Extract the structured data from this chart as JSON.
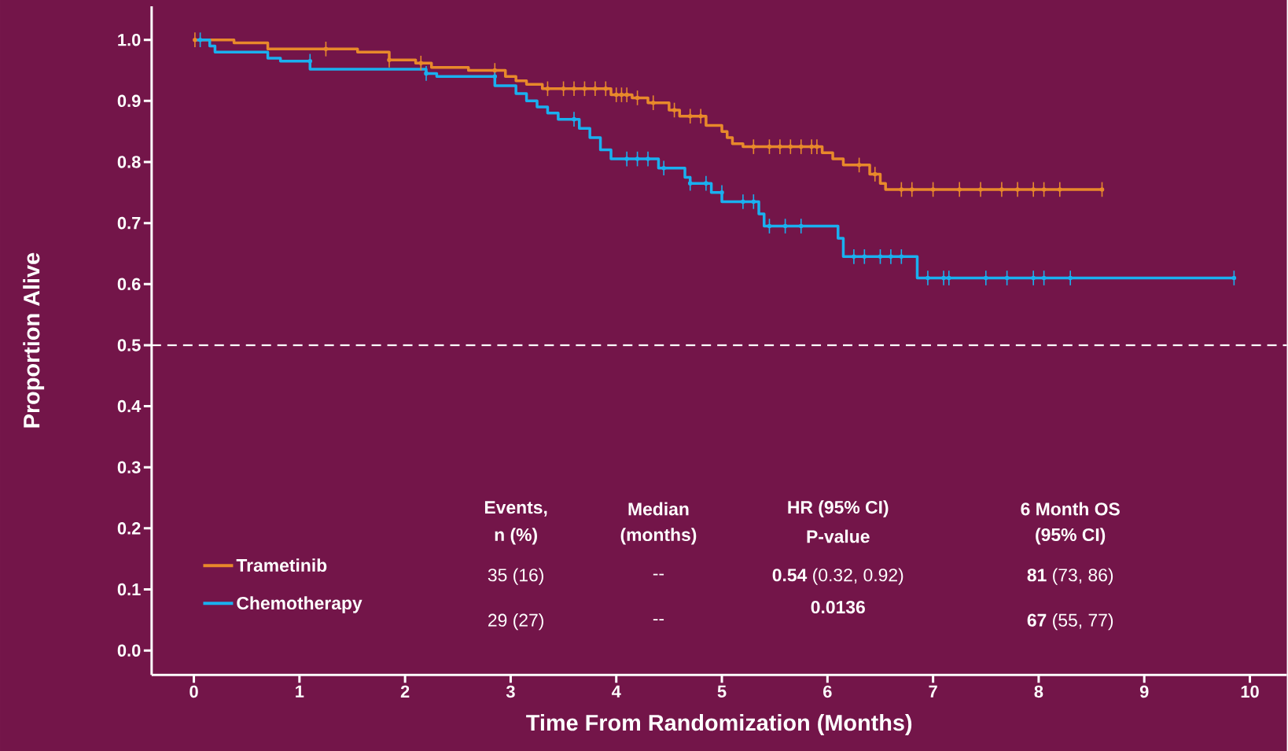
{
  "chart_data": {
    "type": "step",
    "xlabel": "Time From Randomization (Months)",
    "ylabel": "Proportion Alive",
    "xlim": [
      -0.4,
      10.35
    ],
    "ylim": [
      -0.04,
      1.055
    ],
    "xticks": [
      0,
      1,
      2,
      3,
      4,
      5,
      6,
      7,
      8,
      9,
      10
    ],
    "yticks": [
      {
        "value": 0,
        "label": "0.0"
      },
      {
        "value": 0.1,
        "label": "0.1"
      },
      {
        "value": 0.2,
        "label": "0.2"
      },
      {
        "value": 0.3,
        "label": "0.3"
      },
      {
        "value": 0.4,
        "label": "0.4"
      },
      {
        "value": 0.5,
        "label": "0.5"
      },
      {
        "value": 0.6,
        "label": "0.6"
      },
      {
        "value": 0.7,
        "label": "0.7"
      },
      {
        "value": 0.8,
        "label": "0.8"
      },
      {
        "value": 0.9,
        "label": "0.9"
      },
      {
        "value": 1,
        "label": "1.0"
      }
    ],
    "grid": false,
    "legend": "bottom left",
    "marker": "none",
    "line_style": "solid",
    "series": [
      {
        "name": "Trametinib",
        "color": "#e8892b",
        "x": [
          0,
          0.38,
          0.7,
          1.55,
          1.85,
          2.1,
          2.25,
          2.6,
          2.95,
          3.05,
          3.15,
          3.3,
          3.95,
          4.15,
          4.3,
          4.5,
          4.6,
          4.85,
          5.0,
          5.05,
          5.1,
          5.2,
          5.95,
          6.05,
          6.15,
          6.4,
          6.5,
          6.55,
          8.6
        ],
        "values": [
          1.0,
          0.995,
          0.985,
          0.98,
          0.967,
          0.962,
          0.955,
          0.95,
          0.94,
          0.933,
          0.927,
          0.92,
          0.91,
          0.905,
          0.897,
          0.885,
          0.875,
          0.86,
          0.85,
          0.84,
          0.83,
          0.825,
          0.815,
          0.805,
          0.795,
          0.78,
          0.765,
          0.755,
          0.755
        ]
      },
      {
        "name": "Chemotherapy",
        "color": "#1ab0ef",
        "x": [
          0,
          0.15,
          0.2,
          0.7,
          0.82,
          1.1,
          2.2,
          2.3,
          2.85,
          3.05,
          3.15,
          3.25,
          3.35,
          3.45,
          3.65,
          3.75,
          3.85,
          3.95,
          4.4,
          4.65,
          4.7,
          4.9,
          5.0,
          5.35,
          5.4,
          6.1,
          6.15,
          6.85,
          9.85
        ],
        "values": [
          1.0,
          0.99,
          0.98,
          0.97,
          0.965,
          0.952,
          0.945,
          0.94,
          0.925,
          0.912,
          0.9,
          0.89,
          0.88,
          0.87,
          0.855,
          0.84,
          0.82,
          0.805,
          0.79,
          0.775,
          0.765,
          0.75,
          0.735,
          0.715,
          0.695,
          0.675,
          0.645,
          0.61,
          0.61
        ]
      },
      {
        "color": "#e8892b",
        "type": "scatter",
        "errors": [
          0.012,
          0.012,
          0.012,
          0.012,
          0.012,
          0.012,
          0.012,
          0.012,
          0.012,
          0.012,
          0.012,
          0.012,
          0.012,
          0.012,
          0.012,
          0.012,
          0.012,
          0.012,
          0.012,
          0.012,
          0.012,
          0.012,
          0.012,
          0.012,
          0.012,
          0.012,
          0.012,
          0.012,
          0.012,
          0.012,
          0.012,
          0.012,
          0.012,
          0.012,
          0.012,
          0.012,
          0.012,
          0.012,
          0.012
        ],
        "x": [
          0.01,
          1.25,
          1.85,
          2.15,
          2.85,
          3.35,
          3.5,
          3.6,
          3.7,
          3.8,
          3.9,
          4.0,
          4.05,
          4.1,
          4.2,
          4.35,
          4.55,
          4.7,
          4.8,
          5.3,
          5.45,
          5.55,
          5.65,
          5.75,
          5.85,
          5.9,
          6.3,
          6.45,
          6.7,
          6.8,
          7.0,
          7.25,
          7.45,
          7.65,
          7.8,
          7.95,
          8.05,
          8.2,
          8.6
        ],
        "values": [
          1.0,
          0.985,
          0.967,
          0.962,
          0.95,
          0.92,
          0.92,
          0.92,
          0.92,
          0.92,
          0.92,
          0.91,
          0.91,
          0.91,
          0.905,
          0.897,
          0.885,
          0.875,
          0.875,
          0.825,
          0.825,
          0.825,
          0.825,
          0.825,
          0.825,
          0.825,
          0.795,
          0.78,
          0.755,
          0.755,
          0.755,
          0.755,
          0.755,
          0.755,
          0.755,
          0.755,
          0.755,
          0.755,
          0.755
        ]
      },
      {
        "color": "#1ab0ef",
        "type": "scatter",
        "errors": [
          0.012,
          0.012,
          0.012,
          0.012,
          0.012,
          0.012,
          0.012,
          0.012,
          0.012,
          0.012,
          0.012,
          0.012,
          0.012,
          0.012,
          0.012,
          0.012,
          0.012,
          0.012,
          0.012,
          0.012,
          0.012,
          0.012,
          0.012,
          0.012,
          0.012,
          0.012,
          0.012,
          0.012,
          0.012,
          0.012,
          0.012
        ],
        "x": [
          0.06,
          1.1,
          2.2,
          2.85,
          3.6,
          4.1,
          4.2,
          4.3,
          4.45,
          4.7,
          4.85,
          5.0,
          5.2,
          5.3,
          5.45,
          5.6,
          5.75,
          6.25,
          6.35,
          6.5,
          6.6,
          6.7,
          6.95,
          7.1,
          7.15,
          7.5,
          7.7,
          7.95,
          8.05,
          8.3,
          9.85
        ],
        "values": [
          1.0,
          0.965,
          0.945,
          0.94,
          0.87,
          0.805,
          0.805,
          0.805,
          0.79,
          0.765,
          0.765,
          0.75,
          0.735,
          0.735,
          0.695,
          0.695,
          0.695,
          0.645,
          0.645,
          0.645,
          0.645,
          0.645,
          0.61,
          0.61,
          0.61,
          0.61,
          0.61,
          0.61,
          0.61,
          0.61,
          0.61
        ]
      }
    ],
    "ref_lines": [
      {
        "axis": "y",
        "value": 0.5,
        "color": "#ffffff",
        "line_style": "dashed"
      }
    ],
    "annotations": [
      "Events,",
      "n (%)",
      "Median",
      "(months)",
      "HR (95% CI)",
      "P-value",
      "6 Month OS",
      "(95% CI)",
      "35 (16)",
      "--",
      "**0.54** (0.32, 0.92)",
      "**81** (73, 86)",
      "29 (27)",
      "--",
      "0.0136",
      "**67** (55, 77)"
    ]
  }
}
